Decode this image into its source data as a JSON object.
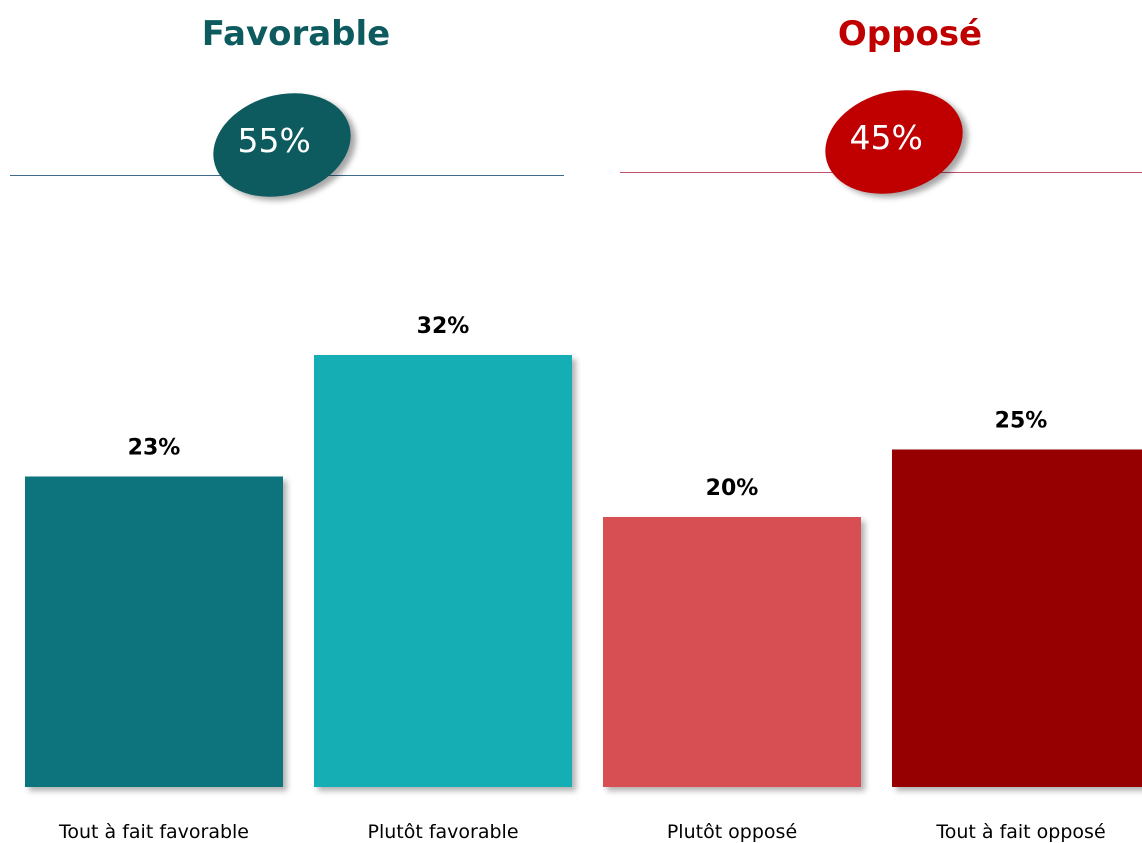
{
  "groups": {
    "favorable": {
      "title": "Favorable",
      "total": "55%",
      "color": "#0d5b5e",
      "line_color": "#3e6b8a"
    },
    "oppose": {
      "title": "Opposé",
      "total": "45%",
      "color": "#c00000",
      "line_color": "#c0506a"
    }
  },
  "chart_data": {
    "type": "bar",
    "categories": [
      "Tout à fait favorable",
      "Plutôt favorable",
      "Plutôt opposé",
      "Tout à fait opposé"
    ],
    "values": [
      23,
      32,
      20,
      25
    ],
    "value_labels": [
      "23%",
      "32%",
      "20%",
      "25%"
    ],
    "colors": [
      "#11737b",
      "#14aeb5",
      "#d84f52",
      "#960000"
    ],
    "ylim": [
      0,
      35
    ],
    "grid": false,
    "legend": "none"
  }
}
